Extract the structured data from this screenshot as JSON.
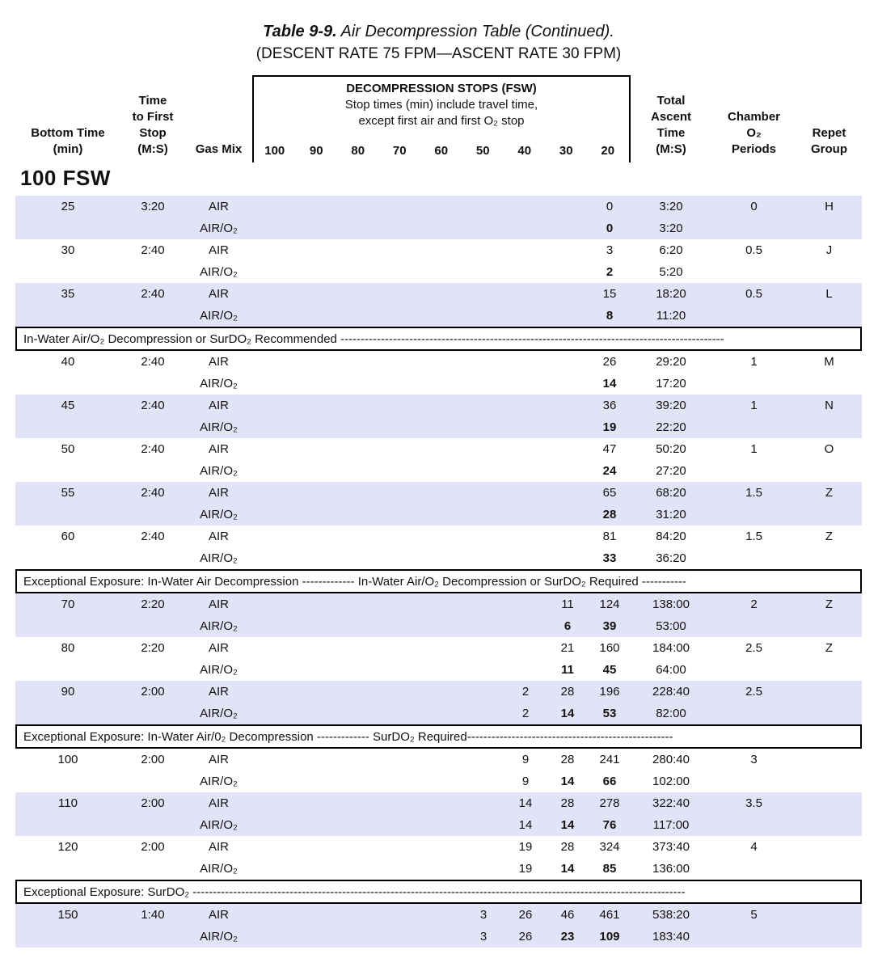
{
  "title": {
    "prefix": "Table 9-9.",
    "rest": "  Air Decompression Table (Continued).",
    "subtitle": "(DESCENT RATE 75 FPM—ASCENT RATE 30 FPM)"
  },
  "colors": {
    "shaded_row": "#e3e3f7",
    "banner_border": "#000000",
    "text": "#111111"
  },
  "header": {
    "bottom_time": "Bottom Time\n(min)",
    "first_stop": "Time\nto First\nStop\n(M:S)",
    "gas_mix": "Gas Mix",
    "stops_box": {
      "title": "DECOMPRESSION STOPS (FSW)",
      "line1": "Stop times (min) include travel time,",
      "line2": "except first air and first O₂ stop",
      "columns": [
        "100",
        "90",
        "80",
        "70",
        "60",
        "50",
        "40",
        "30",
        "20"
      ]
    },
    "total": "Total\nAscent\nTime\n(M:S)",
    "chamber": "Chamber\nO₂\nPeriods",
    "repet": "Repet\nGroup"
  },
  "depth_label": "100 FSW",
  "body": [
    {
      "type": "group",
      "shaded": true,
      "bottom_time": "25",
      "first_stop": "3:20",
      "air": {
        "gas": "AIR",
        "stops": {
          "20": "0"
        },
        "total": "3:20",
        "o2_periods": "0",
        "repet": "H"
      },
      "airo2": {
        "gas": "AIR/O₂",
        "stops": {
          "20": "0"
        },
        "bold": [
          "20"
        ],
        "total": "3:20"
      }
    },
    {
      "type": "group",
      "shaded": false,
      "bottom_time": "30",
      "first_stop": "2:40",
      "air": {
        "gas": "AIR",
        "stops": {
          "20": "3"
        },
        "total": "6:20",
        "o2_periods": "0.5",
        "repet": "J"
      },
      "airo2": {
        "gas": "AIR/O₂",
        "stops": {
          "20": "2"
        },
        "bold": [
          "20"
        ],
        "total": "5:20"
      }
    },
    {
      "type": "group",
      "shaded": true,
      "bottom_time": "35",
      "first_stop": "2:40",
      "air": {
        "gas": "AIR",
        "stops": {
          "20": "15"
        },
        "total": "18:20",
        "o2_periods": "0.5",
        "repet": "L"
      },
      "airo2": {
        "gas": "AIR/O₂",
        "stops": {
          "20": "8"
        },
        "bold": [
          "20"
        ],
        "total": "11:20"
      }
    },
    {
      "type": "banner",
      "text": "In-Water Air/O₂ Decompression or SurDO₂ Recommended  -----------------------------------------------------------------------------------------------"
    },
    {
      "type": "group",
      "shaded": false,
      "bottom_time": "40",
      "first_stop": "2:40",
      "air": {
        "gas": "AIR",
        "stops": {
          "20": "26"
        },
        "total": "29:20",
        "o2_periods": "1",
        "repet": "M"
      },
      "airo2": {
        "gas": "AIR/O₂",
        "stops": {
          "20": "14"
        },
        "bold": [
          "20"
        ],
        "total": "17:20"
      }
    },
    {
      "type": "group",
      "shaded": true,
      "bottom_time": "45",
      "first_stop": "2:40",
      "air": {
        "gas": "AIR",
        "stops": {
          "20": "36"
        },
        "total": "39:20",
        "o2_periods": "1",
        "repet": "N"
      },
      "airo2": {
        "gas": "AIR/O₂",
        "stops": {
          "20": "19"
        },
        "bold": [
          "20"
        ],
        "total": "22:20"
      }
    },
    {
      "type": "group",
      "shaded": false,
      "bottom_time": "50",
      "first_stop": "2:40",
      "air": {
        "gas": "AIR",
        "stops": {
          "20": "47"
        },
        "total": "50:20",
        "o2_periods": "1",
        "repet": "O"
      },
      "airo2": {
        "gas": "AIR/O₂",
        "stops": {
          "20": "24"
        },
        "bold": [
          "20"
        ],
        "total": "27:20"
      }
    },
    {
      "type": "group",
      "shaded": true,
      "bottom_time": "55",
      "first_stop": "2:40",
      "air": {
        "gas": "AIR",
        "stops": {
          "20": "65"
        },
        "total": "68:20",
        "o2_periods": "1.5",
        "repet": "Z"
      },
      "airo2": {
        "gas": "AIR/O₂",
        "stops": {
          "20": "28"
        },
        "bold": [
          "20"
        ],
        "total": "31:20"
      }
    },
    {
      "type": "group",
      "shaded": false,
      "bottom_time": "60",
      "first_stop": "2:40",
      "air": {
        "gas": "AIR",
        "stops": {
          "20": "81"
        },
        "total": "84:20",
        "o2_periods": "1.5",
        "repet": "Z"
      },
      "airo2": {
        "gas": "AIR/O₂",
        "stops": {
          "20": "33"
        },
        "bold": [
          "20"
        ],
        "total": "36:20"
      }
    },
    {
      "type": "banner",
      "text": "Exceptional Exposure: In-Water Air Decompression ------------- In-Water Air/O₂ Decompression or SurDO₂ Required -----------"
    },
    {
      "type": "group",
      "shaded": true,
      "bottom_time": "70",
      "first_stop": "2:20",
      "air": {
        "gas": "AIR",
        "stops": {
          "30": "11",
          "20": "124"
        },
        "total": "138:00",
        "o2_periods": "2",
        "repet": "Z"
      },
      "airo2": {
        "gas": "AIR/O₂",
        "stops": {
          "30": "6",
          "20": "39"
        },
        "bold": [
          "30",
          "20"
        ],
        "total": "53:00"
      }
    },
    {
      "type": "group",
      "shaded": false,
      "bottom_time": "80",
      "first_stop": "2:20",
      "air": {
        "gas": "AIR",
        "stops": {
          "30": "21",
          "20": "160"
        },
        "total": "184:00",
        "o2_periods": "2.5",
        "repet": "Z"
      },
      "airo2": {
        "gas": "AIR/O₂",
        "stops": {
          "30": "11",
          "20": "45"
        },
        "bold": [
          "30",
          "20"
        ],
        "total": "64:00"
      }
    },
    {
      "type": "group",
      "shaded": true,
      "bottom_time": "90",
      "first_stop": "2:00",
      "air": {
        "gas": "AIR",
        "stops": {
          "40": "2",
          "30": "28",
          "20": "196"
        },
        "total": "228:40",
        "o2_periods": "2.5",
        "repet": ""
      },
      "airo2": {
        "gas": "AIR/O₂",
        "stops": {
          "40": "2",
          "30": "14",
          "20": "53"
        },
        "bold": [
          "30",
          "20"
        ],
        "total": "82:00"
      }
    },
    {
      "type": "banner",
      "text": "Exceptional Exposure: In-Water Air/0₂ Decompression ------------- SurDO₂ Required---------------------------------------------------"
    },
    {
      "type": "group",
      "shaded": false,
      "bottom_time": "100",
      "first_stop": "2:00",
      "air": {
        "gas": "AIR",
        "stops": {
          "40": "9",
          "30": "28",
          "20": "241"
        },
        "total": "280:40",
        "o2_periods": "3",
        "repet": ""
      },
      "airo2": {
        "gas": "AIR/O₂",
        "stops": {
          "40": "9",
          "30": "14",
          "20": "66"
        },
        "bold": [
          "30",
          "20"
        ],
        "total": "102:00"
      }
    },
    {
      "type": "group",
      "shaded": true,
      "bottom_time": "110",
      "first_stop": "2:00",
      "air": {
        "gas": "AIR",
        "stops": {
          "40": "14",
          "30": "28",
          "20": "278"
        },
        "total": "322:40",
        "o2_periods": "3.5",
        "repet": ""
      },
      "airo2": {
        "gas": "AIR/O₂",
        "stops": {
          "40": "14",
          "30": "14",
          "20": "76"
        },
        "bold": [
          "30",
          "20"
        ],
        "total": "117:00"
      }
    },
    {
      "type": "group",
      "shaded": false,
      "bottom_time": "120",
      "first_stop": "2:00",
      "air": {
        "gas": "AIR",
        "stops": {
          "40": "19",
          "30": "28",
          "20": "324"
        },
        "total": "373:40",
        "o2_periods": "4",
        "repet": ""
      },
      "airo2": {
        "gas": "AIR/O₂",
        "stops": {
          "40": "19",
          "30": "14",
          "20": "85"
        },
        "bold": [
          "30",
          "20"
        ],
        "total": "136:00"
      }
    },
    {
      "type": "banner",
      "text": "Exceptional Exposure: SurDO₂  --------------------------------------------------------------------------------------------------------------------------"
    },
    {
      "type": "group",
      "shaded": true,
      "bottom_time": "150",
      "first_stop": "1:40",
      "air": {
        "gas": "AIR",
        "stops": {
          "50": "3",
          "40": "26",
          "30": "46",
          "20": "461"
        },
        "total": "538:20",
        "o2_periods": "5",
        "repet": ""
      },
      "airo2": {
        "gas": "AIR/O₂",
        "stops": {
          "50": "3",
          "40": "26",
          "30": "23",
          "20": "109"
        },
        "bold": [
          "30",
          "20"
        ],
        "total": "183:40"
      }
    }
  ]
}
